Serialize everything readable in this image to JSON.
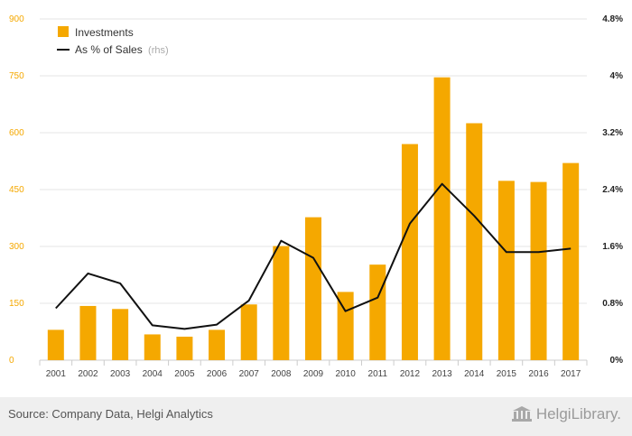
{
  "chart_data": {
    "type": "bar",
    "categories": [
      "2001",
      "2002",
      "2003",
      "2004",
      "2005",
      "2006",
      "2007",
      "2008",
      "2009",
      "2010",
      "2011",
      "2012",
      "2013",
      "2014",
      "2015",
      "2016",
      "2017"
    ],
    "series": [
      {
        "name": "Investments",
        "type": "bar",
        "axis": "left",
        "color": "#f5a800",
        "values": [
          80,
          143,
          135,
          68,
          62,
          80,
          147,
          301,
          377,
          180,
          252,
          570,
          746,
          625,
          473,
          470,
          520
        ]
      },
      {
        "name": "As % of Sales",
        "name_suffix": "(rhs)",
        "type": "line",
        "axis": "right",
        "color": "#111111",
        "values": [
          0.73,
          1.22,
          1.08,
          0.49,
          0.44,
          0.5,
          0.84,
          1.68,
          1.44,
          0.69,
          0.88,
          1.92,
          2.48,
          2.03,
          1.52,
          1.52,
          1.57
        ]
      }
    ],
    "y_left": {
      "min": 0,
      "max": 900,
      "ticks": [
        0,
        150,
        300,
        450,
        600,
        750,
        900
      ],
      "color": "#f5a800"
    },
    "y_right": {
      "min": 0,
      "max": 4.8,
      "ticks": [
        0,
        0.8,
        1.6,
        2.4,
        3.2,
        4,
        4.8
      ],
      "tick_labels": [
        "0%",
        "0.8%",
        "1.6%",
        "2.4%",
        "3.2%",
        "4%",
        "4.8%"
      ]
    },
    "grid": true,
    "legend": "top-left"
  },
  "footer": {
    "source": "Source: Company Data, Helgi Analytics",
    "brand": "HelgiLibrary."
  }
}
